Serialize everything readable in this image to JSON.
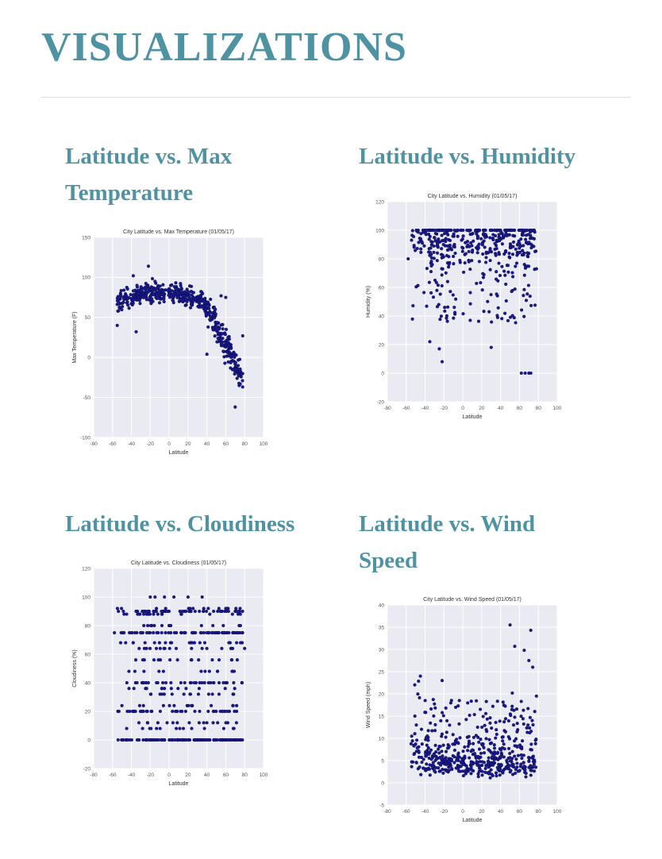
{
  "page": {
    "title": "VISUALIZATIONS"
  },
  "visualizations": [
    {
      "heading_line1": "Latitude vs. Max",
      "heading_line2": "Temperature"
    },
    {
      "heading_line1": "Latitude vs. Humidity",
      "heading_line2": ""
    },
    {
      "heading_line1": "Latitude vs. Cloudiness",
      "heading_line2": ""
    },
    {
      "heading_line1": "Latitude vs. Wind",
      "heading_line2": "Speed"
    }
  ],
  "colors": {
    "heading": "#4f93a3",
    "plot_bg": "#eaeaf2",
    "marker": "#1a1a8c"
  },
  "chart_data": [
    {
      "type": "scatter",
      "title": "City Latitude vs. Max Temperature (01/05/17)",
      "xlabel": "Latitude",
      "ylabel": "Max Temperature (F)",
      "xlim": [
        -80,
        100
      ],
      "ylim": [
        -100,
        150
      ],
      "xticks": [
        "-80",
        "-60",
        "-40",
        "-20",
        "0",
        "20",
        "40",
        "60",
        "80",
        "100"
      ],
      "yticks": [
        "-100",
        "-50",
        "0",
        "50",
        "100",
        "150"
      ],
      "grid": true,
      "pattern": "temp",
      "highlights": [
        [
          -22,
          114
        ],
        [
          -38,
          102
        ],
        [
          -15,
          95
        ],
        [
          55,
          77
        ],
        [
          60,
          75
        ],
        [
          78,
          27
        ],
        [
          -55,
          40
        ],
        [
          -35,
          32
        ],
        [
          40,
          4
        ],
        [
          70,
          -62
        ]
      ]
    },
    {
      "type": "scatter",
      "title": "City Latitude vs. Humidity (01/05/17)",
      "xlabel": "Latitude",
      "ylabel": "Humidity (%)",
      "xlim": [
        -80,
        100
      ],
      "ylim": [
        -20,
        120
      ],
      "xticks": [
        "-80",
        "-60",
        "-40",
        "-20",
        "0",
        "20",
        "40",
        "60",
        "80",
        "100"
      ],
      "yticks": [
        "-20",
        "0",
        "20",
        "40",
        "60",
        "80",
        "100",
        "120"
      ],
      "grid": true,
      "pattern": "humidity",
      "highlights": [
        [
          -22,
          8
        ],
        [
          -35,
          22
        ],
        [
          -25,
          17
        ],
        [
          30,
          18
        ],
        [
          62,
          0
        ],
        [
          66,
          0
        ],
        [
          70,
          0
        ],
        [
          72,
          0
        ],
        [
          -58,
          80
        ],
        [
          78,
          73
        ]
      ]
    },
    {
      "type": "scatter",
      "title": "City Latitude vs. Cloudiness (01/05/17)",
      "xlabel": "Latitude",
      "ylabel": "Cloudiness (%)",
      "xlim": [
        -80,
        100
      ],
      "ylim": [
        -20,
        120
      ],
      "xticks": [
        "-80",
        "-60",
        "-40",
        "-20",
        "0",
        "20",
        "40",
        "60",
        "80",
        "100"
      ],
      "yticks": [
        "-20",
        "0",
        "20",
        "40",
        "60",
        "80",
        "100",
        "120"
      ],
      "grid": true,
      "pattern": "cloud",
      "highlights": [
        [
          -20,
          100
        ],
        [
          -15,
          100
        ],
        [
          -5,
          100
        ],
        [
          5,
          100
        ],
        [
          20,
          100
        ],
        [
          35,
          100
        ],
        [
          -45,
          88
        ],
        [
          -58,
          75
        ],
        [
          80,
          64
        ]
      ]
    },
    {
      "type": "scatter",
      "title": "City Latitude vs. Wind Speed (01/05/17)",
      "xlabel": "Latitude",
      "ylabel": "Wind Speed (mph)",
      "xlim": [
        -80,
        100
      ],
      "ylim": [
        -5,
        40
      ],
      "xticks": [
        "-80",
        "-60",
        "-40",
        "-20",
        "0",
        "20",
        "40",
        "60",
        "80",
        "100"
      ],
      "yticks": [
        "-5",
        "0",
        "5",
        "10",
        "15",
        "20",
        "25",
        "30",
        "35",
        "40"
      ],
      "grid": true,
      "pattern": "wind",
      "highlights": [
        [
          50,
          35.5
        ],
        [
          72,
          34.3
        ],
        [
          55,
          30.7
        ],
        [
          65,
          29.8
        ],
        [
          70,
          27.5
        ],
        [
          74,
          26
        ],
        [
          -45,
          24
        ],
        [
          -22,
          23
        ],
        [
          -40,
          18.5
        ],
        [
          78,
          19.5
        ]
      ]
    }
  ]
}
